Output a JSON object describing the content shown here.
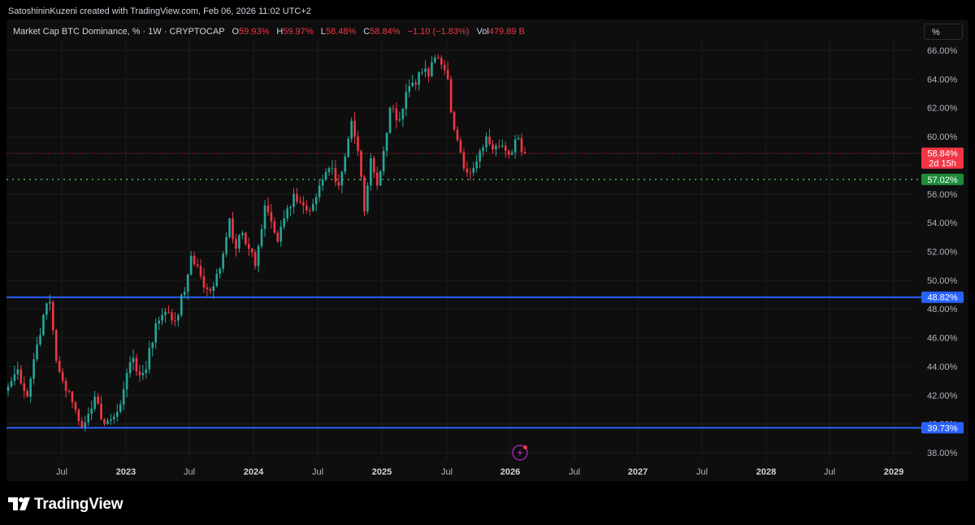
{
  "header": {
    "attribution": "SatoshininKuzeni created with TradingView.com, Feb 06, 2026 11:02 UTC+2"
  },
  "legend": {
    "title": "Market Cap BTC Dominance, % · 1W · CRYPTOCAP",
    "o_label": "O",
    "o_value": "59.93%",
    "h_label": "H",
    "h_value": "59.97%",
    "l_label": "L",
    "l_value": "58.48%",
    "c_label": "C",
    "c_value": "58.84%",
    "change": "−1.10 (−1.83%)",
    "vol_label": "Vol",
    "vol_value": "479.89 B"
  },
  "scale_button": {
    "label": "%"
  },
  "branding": {
    "logo_text": "TradingView"
  },
  "colors": {
    "up": "#26a69a",
    "down": "#f23645",
    "hline": "#2962ff",
    "support_dotted": "#4caf50",
    "background": "#0e0e0e",
    "grid": "#1c1c1c"
  },
  "chart_data": {
    "type": "candlestick",
    "title": "Market Cap BTC Dominance, % · 1W · CRYPTOCAP",
    "x_ticks": [
      "Jul",
      "2023",
      "Jul",
      "2024",
      "Jul",
      "2025",
      "Jul",
      "2026",
      "Jul",
      "2027",
      "Jul",
      "2028",
      "Jul",
      "2029"
    ],
    "y_ticks": [
      "38.00%",
      "40.00%",
      "42.00%",
      "44.00%",
      "46.00%",
      "48.00%",
      "50.00%",
      "52.00%",
      "54.00%",
      "56.00%",
      "58.00%",
      "60.00%",
      "62.00%",
      "64.00%",
      "66.00%"
    ],
    "ylim": [
      37.8,
      66.3
    ],
    "price_labels": [
      {
        "value": 58.84,
        "text": "58.84%",
        "sub": "2d 15h",
        "color": "#f23645"
      },
      {
        "value": 57.02,
        "text": "57.02%",
        "color": "#1e8c3a"
      },
      {
        "value": 48.82,
        "text": "48.82%",
        "color": "#2962ff"
      },
      {
        "value": 39.73,
        "text": "39.73%",
        "color": "#2962ff"
      }
    ],
    "horizontal_lines": [
      {
        "value": 48.82,
        "style": "solid",
        "color": "#2962ff"
      },
      {
        "value": 39.73,
        "style": "solid",
        "color": "#2962ff"
      },
      {
        "value": 57.02,
        "style": "dotted",
        "color": "#4caf50"
      },
      {
        "value": 58.84,
        "style": "dotted",
        "color": "#f23645"
      }
    ],
    "anchors": [
      [
        0,
        42.6
      ],
      [
        3,
        43.8
      ],
      [
        6,
        41.9
      ],
      [
        8,
        44.5
      ],
      [
        11,
        47.6
      ],
      [
        13,
        48.5
      ],
      [
        15,
        44.4
      ],
      [
        17,
        43.0
      ],
      [
        20,
        41.5
      ],
      [
        22,
        40.2
      ],
      [
        24,
        40.1
      ],
      [
        27,
        41.9
      ],
      [
        30,
        40.0
      ],
      [
        33,
        40.5
      ],
      [
        36,
        42.4
      ],
      [
        39,
        44.6
      ],
      [
        41,
        43.4
      ],
      [
        43,
        43.8
      ],
      [
        46,
        47.0
      ],
      [
        49,
        47.8
      ],
      [
        52,
        47.2
      ],
      [
        55,
        49.2
      ],
      [
        57,
        51.7
      ],
      [
        59,
        51.0
      ],
      [
        61,
        49.5
      ],
      [
        64,
        49.6
      ],
      [
        66,
        50.8
      ],
      [
        69,
        54.3
      ],
      [
        71,
        52.2
      ],
      [
        73,
        53.3
      ],
      [
        75,
        52.2
      ],
      [
        77,
        51.0
      ],
      [
        80,
        55.2
      ],
      [
        82,
        54.1
      ],
      [
        84,
        52.7
      ],
      [
        86,
        54.3
      ],
      [
        89,
        56.0
      ],
      [
        92,
        55.2
      ],
      [
        95,
        55.3
      ],
      [
        98,
        57.0
      ],
      [
        100,
        57.8
      ],
      [
        103,
        56.6
      ],
      [
        105,
        58.6
      ],
      [
        107,
        61.1
      ],
      [
        109,
        59.0
      ],
      [
        111,
        54.8
      ],
      [
        113,
        58.5
      ],
      [
        115,
        56.6
      ],
      [
        117,
        59.0
      ],
      [
        119,
        62.0
      ],
      [
        122,
        61.2
      ],
      [
        124,
        63.1
      ],
      [
        127,
        63.6
      ],
      [
        129,
        64.5
      ],
      [
        131,
        64.2
      ],
      [
        133,
        65.5
      ],
      [
        135,
        65.0
      ],
      [
        137,
        64.0
      ],
      [
        138,
        61.7
      ],
      [
        139,
        60.5
      ],
      [
        141,
        58.9
      ],
      [
        143,
        57.5
      ],
      [
        145,
        57.8
      ],
      [
        147,
        59.0
      ],
      [
        149,
        60.0
      ],
      [
        151,
        59.1
      ],
      [
        153,
        59.3
      ],
      [
        155,
        59.0
      ],
      [
        157,
        58.9
      ],
      [
        159,
        59.9
      ],
      [
        161,
        58.84
      ]
    ]
  }
}
